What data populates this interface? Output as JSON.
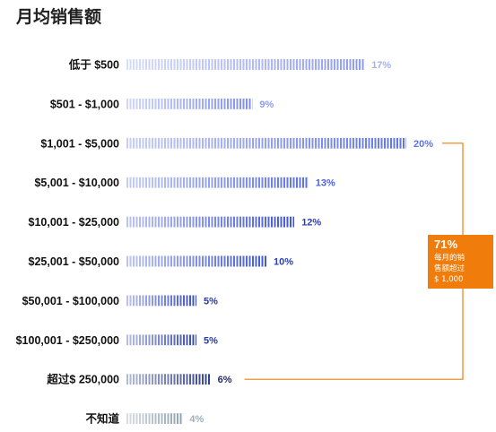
{
  "chart_data": {
    "type": "bar",
    "orientation": "horizontal",
    "title": "月均销售额",
    "categories": [
      "低于 $500",
      "$501 - $1,000",
      "$1,001 - $5,000",
      "$5,001 - $10,000",
      "$10,001 - $25,000",
      "$25,001 - $50,000",
      "$50,001 - $100,000",
      "$100,001 - $250,000",
      "超过$ 250,000",
      "不知道"
    ],
    "values": [
      17,
      9,
      20,
      13,
      12,
      10,
      5,
      5,
      6,
      4
    ],
    "value_labels": [
      "17%",
      "9%",
      "20%",
      "13%",
      "12%",
      "10%",
      "5%",
      "5%",
      "6%",
      "4%"
    ],
    "value_unit": "%",
    "grid": false,
    "colors": {
      "bars": [
        "#8e9cf0",
        "#7d8ded",
        "#5f74e3",
        "#5b6fe0",
        "#3f55d6",
        "#4258d8",
        "#3a4fc8",
        "#3447b0",
        "#2f3f8c",
        "#8fa3b0"
      ],
      "labels": [
        "#a4b2f4",
        "#8e9cf0",
        "#5f74e3",
        "#4c62db",
        "#2b3fb8",
        "#2b3fb8",
        "#2b3b9c",
        "#2b3b9c",
        "#1f2d6e",
        "#9fb0ba"
      ]
    },
    "annotation": {
      "value": "71%",
      "lines": [
        "每月的销",
        "售额超过",
        "$ 1,000"
      ],
      "color": "#f07d0b",
      "span_categories": [
        "$1,001 - $5,000",
        "超过$ 250,000"
      ]
    }
  }
}
